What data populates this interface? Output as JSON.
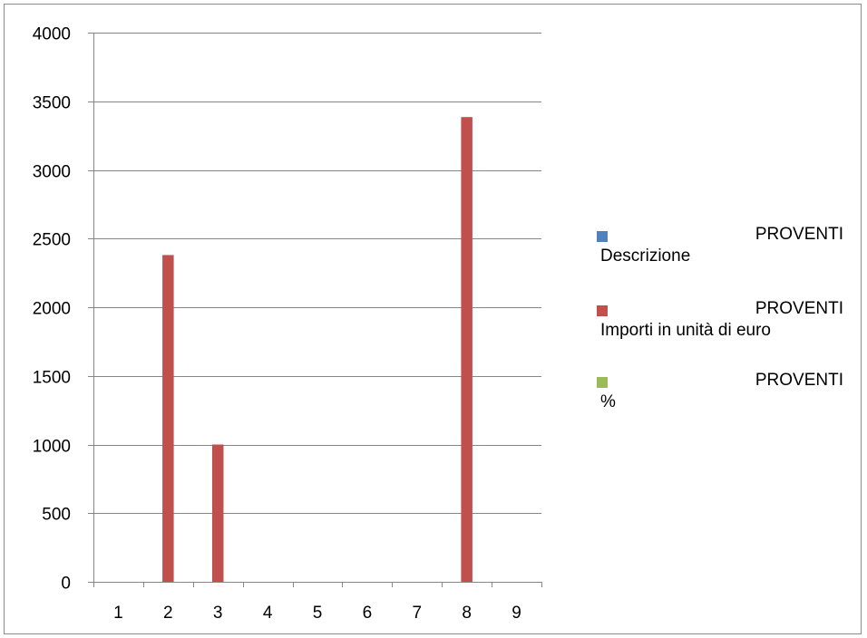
{
  "chart_data": {
    "type": "bar",
    "categories": [
      "1",
      "2",
      "3",
      "4",
      "5",
      "6",
      "7",
      "8",
      "9"
    ],
    "series": [
      {
        "name": "PROVENTI Descrizione",
        "legend_title": "PROVENTI",
        "legend_sub": "Descrizione",
        "color": "#4f81bd",
        "values": [
          0,
          0,
          0,
          0,
          0,
          0,
          0,
          0,
          0
        ]
      },
      {
        "name": "PROVENTI Importi in unità di euro",
        "legend_title": "PROVENTI",
        "legend_sub": "Importi in unità di euro",
        "color": "#c0504d",
        "values": [
          0,
          2380,
          1000,
          0,
          0,
          0,
          0,
          3385,
          0
        ]
      },
      {
        "name": "PROVENTI %",
        "legend_title": "PROVENTI",
        "legend_sub": "%",
        "color": "#9bbb59",
        "values": [
          0,
          0,
          0,
          0,
          0,
          0,
          0,
          0,
          0
        ]
      }
    ],
    "yticks": [
      "0",
      "500",
      "1000",
      "1500",
      "2000",
      "2500",
      "3000",
      "3500",
      "4000"
    ],
    "ylim": [
      0,
      4000
    ],
    "grid": true,
    "legend_position": "right"
  }
}
